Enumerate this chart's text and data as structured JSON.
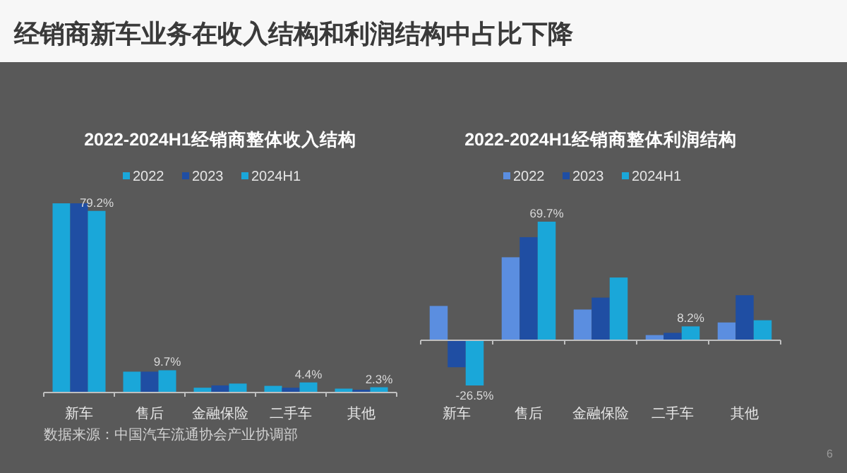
{
  "chart_data": [
    {
      "type": "bar",
      "title": "2022-2024H1经销商整体收入结构",
      "legend": "top",
      "categories": [
        "新车",
        "售后",
        "金融保险",
        "二手车",
        "其他"
      ],
      "series": [
        {
          "name": "2022",
          "color": "#1aa7d9",
          "values": [
            82.5,
            9.1,
            2.1,
            2.9,
            1.7
          ]
        },
        {
          "name": "2023",
          "color": "#1f4ea3",
          "values": [
            82.5,
            9.1,
            3.1,
            2.1,
            1.2
          ]
        },
        {
          "name": "2024H1",
          "color": "#1aa7d9",
          "values": [
            79.2,
            9.7,
            3.9,
            4.4,
            2.3
          ],
          "value_labels": [
            "79.2%",
            "9.7%",
            null,
            "4.4%",
            "2.3%"
          ]
        }
      ],
      "annotations": [
        "经销商新车业务在收入结构和利润结构中占比下降",
        "数据来源：中国汽车流通协会产业协调部"
      ]
    },
    {
      "type": "bar",
      "title": "2022-2024H1经销商整体利润结构",
      "legend": "top",
      "categories": [
        "新车",
        "售后",
        "金融保险",
        "二手车",
        "其他"
      ],
      "series": [
        {
          "name": "2022",
          "color": "#5b8ee0",
          "values": [
            20.2,
            48.8,
            18.1,
            3.1,
            10.5
          ]
        },
        {
          "name": "2023",
          "color": "#1f4ea3",
          "values": [
            -15.8,
            60.6,
            25.1,
            4.4,
            26.5
          ]
        },
        {
          "name": "2024H1",
          "color": "#1aa7d9",
          "values": [
            -26.5,
            69.7,
            36.9,
            8.2,
            11.8
          ],
          "value_labels": [
            "-26.5%",
            "69.7%",
            null,
            "8.2%",
            null
          ]
        }
      ],
      "annotations": [
        "6"
      ]
    }
  ]
}
